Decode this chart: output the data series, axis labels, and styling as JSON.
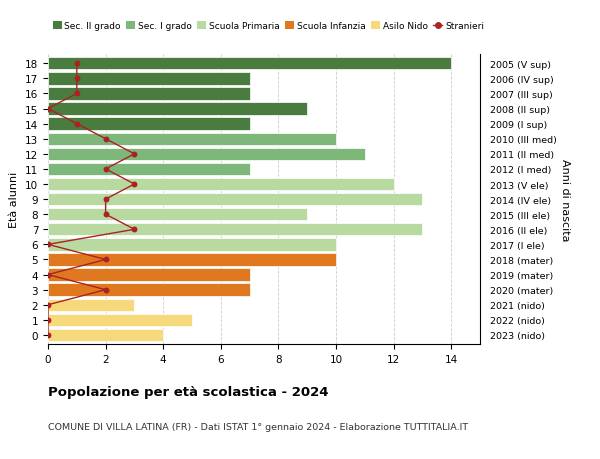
{
  "ages": [
    18,
    17,
    16,
    15,
    14,
    13,
    12,
    11,
    10,
    9,
    8,
    7,
    6,
    5,
    4,
    3,
    2,
    1,
    0
  ],
  "years": [
    "2005 (V sup)",
    "2006 (IV sup)",
    "2007 (III sup)",
    "2008 (II sup)",
    "2009 (I sup)",
    "2010 (III med)",
    "2011 (II med)",
    "2012 (I med)",
    "2013 (V ele)",
    "2014 (IV ele)",
    "2015 (III ele)",
    "2016 (II ele)",
    "2017 (I ele)",
    "2018 (mater)",
    "2019 (mater)",
    "2020 (mater)",
    "2021 (nido)",
    "2022 (nido)",
    "2023 (nido)"
  ],
  "bar_values": [
    14,
    7,
    7,
    9,
    7,
    10,
    11,
    7,
    12,
    13,
    9,
    13,
    10,
    10,
    7,
    7,
    3,
    5,
    4
  ],
  "bar_colors": [
    "#4a7c3f",
    "#4a7c3f",
    "#4a7c3f",
    "#4a7c3f",
    "#4a7c3f",
    "#7db87a",
    "#7db87a",
    "#7db87a",
    "#b8d9a0",
    "#b8d9a0",
    "#b8d9a0",
    "#b8d9a0",
    "#b8d9a0",
    "#e07820",
    "#e07820",
    "#e07820",
    "#f5d97a",
    "#f5d97a",
    "#f5d97a"
  ],
  "stranieri_x": [
    1,
    1,
    1,
    0,
    1,
    2,
    3,
    2,
    3,
    2,
    2,
    3,
    0,
    2,
    0,
    2,
    0,
    0,
    0
  ],
  "title": "Popolazione per età scolastica - 2024",
  "subtitle": "COMUNE DI VILLA LATINA (FR) - Dati ISTAT 1° gennaio 2024 - Elaborazione TUTTITALIA.IT",
  "ylabel": "Età alunni",
  "right_label": "Anni di nascita",
  "xlim": [
    0,
    15
  ],
  "xticks": [
    0,
    2,
    4,
    6,
    8,
    10,
    12,
    14
  ],
  "legend_labels": [
    "Sec. II grado",
    "Sec. I grado",
    "Scuola Primaria",
    "Scuola Infanzia",
    "Asilo Nido",
    "Stranieri"
  ],
  "legend_colors": [
    "#4a7c3f",
    "#7db87a",
    "#b8d9a0",
    "#e07820",
    "#f5d97a",
    "#aa2222"
  ],
  "stranieri_color": "#aa2222",
  "grid_color": "#cccccc",
  "bg_color": "#ffffff"
}
